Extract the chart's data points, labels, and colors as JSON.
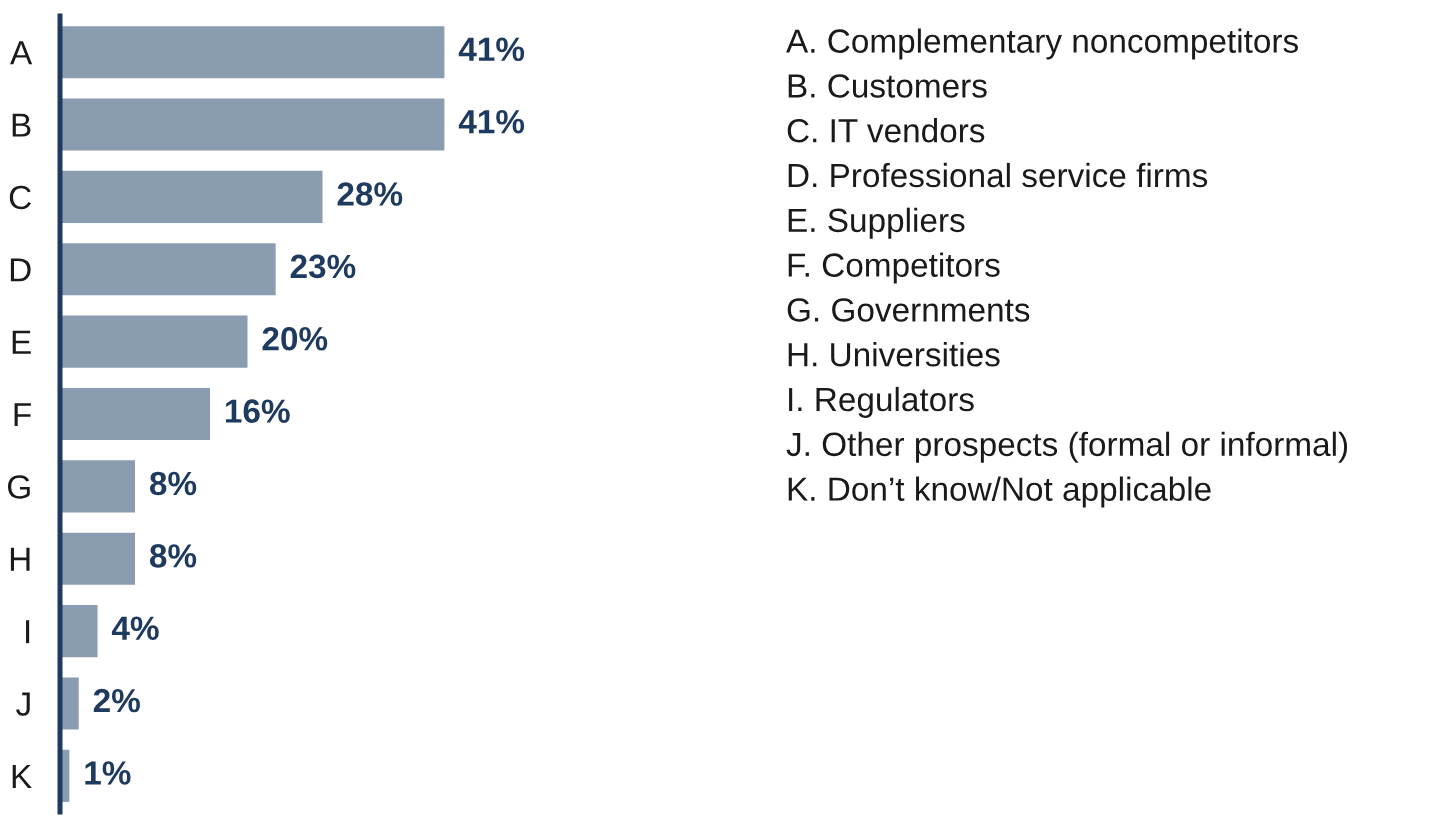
{
  "chart_data": {
    "type": "bar",
    "orientation": "horizontal",
    "categories": [
      "A",
      "B",
      "C",
      "D",
      "E",
      "F",
      "G",
      "H",
      "I",
      "J",
      "K"
    ],
    "values": [
      41,
      41,
      28,
      23,
      20,
      16,
      8,
      8,
      4,
      2,
      1
    ],
    "value_labels": [
      "41%",
      "41%",
      "28%",
      "23%",
      "20%",
      "16%",
      "8%",
      "8%",
      "4%",
      "2%",
      "1%"
    ],
    "color": "#8a9cb0",
    "annotations": [
      "A. Complementary noncompetitors",
      "B. Customers",
      "C. IT vendors",
      "D. Professional service firms",
      "E. Suppliers",
      "F. Competitors",
      "G. Governments",
      "H. Universities",
      "I. Regulators",
      "J. Other prospects (formal or informal)",
      "K. Don’t know/Not applicable"
    ],
    "grid": false,
    "legend": false
  }
}
